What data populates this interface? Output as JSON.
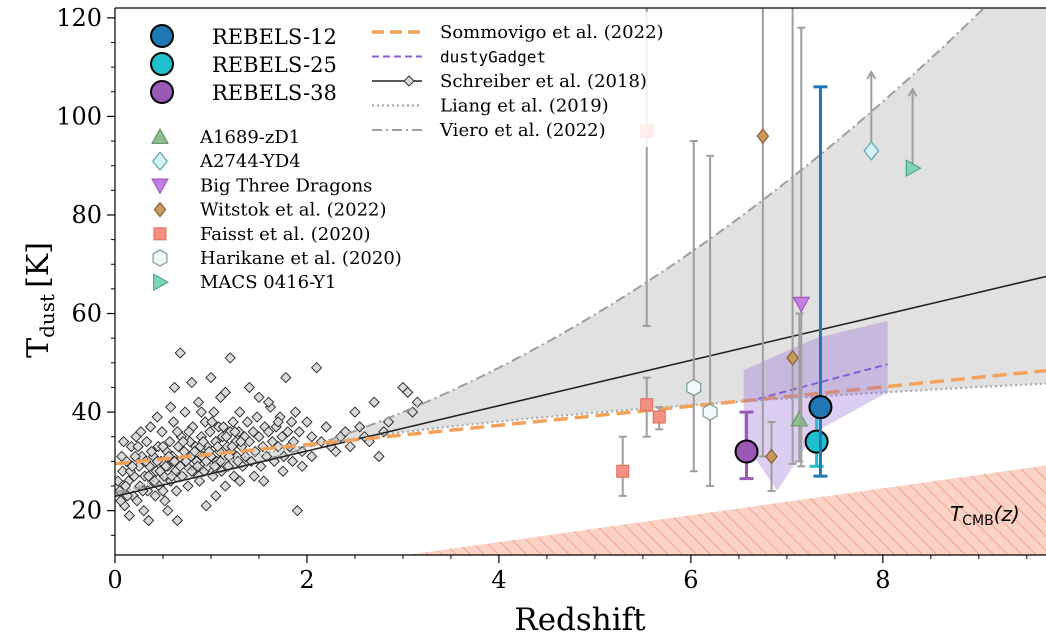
{
  "chart_data": {
    "type": "scatter",
    "xlabel": "Redshift",
    "ylabel": "T",
    "ylabel_sub": "dust",
    "ylabel_unit": "[K]",
    "xlim": [
      0,
      9.7
    ],
    "ylim": [
      11,
      122
    ],
    "xticks": [
      0,
      2,
      4,
      6,
      8
    ],
    "yticks": [
      20,
      40,
      60,
      80,
      100,
      120
    ],
    "grid": false,
    "legend_position": "top-left",
    "region_label": "T_CMB(z)",
    "region_label_main": "T",
    "region_label_sub": "CMB",
    "region_label_tail": "(z)",
    "colors": {
      "rebels12": "#1f78b4",
      "rebels25": "#1fbfd0",
      "rebels38": "#9b59b6",
      "sommovigo": "#f4a25a",
      "dustygadget": "#8b5cd6",
      "errorbar": "#9e9e9e",
      "shade": "#dcdcdc",
      "cmb": "#f8b3a3"
    },
    "legend": {
      "rebels": [
        "REBELS-12",
        "REBELS-25",
        "REBELS-38"
      ],
      "lit": [
        "A1689-zD1",
        "A2744-YD4",
        "Big Three Dragons",
        "Witstok et al. (2022)",
        "Faisst et al. (2020)",
        "Harikane et al. (2020)",
        "MACS 0416-Y1"
      ],
      "models": [
        "Sommovigo et al. (2022)",
        "dustyGadget",
        "Schreiber et al. (2018)",
        "Liang et al. (2019)",
        "Viero et al. (2022)"
      ]
    },
    "series": [
      {
        "name": "REBELS-12",
        "points": [
          {
            "x": 7.35,
            "y": 41,
            "lo": 27,
            "hi": 106
          }
        ]
      },
      {
        "name": "REBELS-25",
        "points": [
          {
            "x": 7.31,
            "y": 34,
            "lo": 29,
            "hi": 41
          }
        ]
      },
      {
        "name": "REBELS-38",
        "points": [
          {
            "x": 6.58,
            "y": 32,
            "lo": 26.5,
            "hi": 40
          }
        ]
      },
      {
        "name": "A1689-zD1",
        "points": [
          {
            "x": 7.13,
            "y": 38.5,
            "lo": 30,
            "hi": 60
          }
        ]
      },
      {
        "name": "A2744-YD4",
        "points": [
          {
            "x": 7.88,
            "y": 93,
            "lo": 93,
            "hi": 109,
            "limit": "lower"
          }
        ]
      },
      {
        "name": "Big Three Dragons",
        "points": [
          {
            "x": 7.15,
            "y": 62,
            "lo": 29,
            "hi": 118
          }
        ]
      },
      {
        "name": "Witstok et al. (2022)",
        "points": [
          {
            "x": 6.75,
            "y": 96,
            "lo": 31,
            "hi": 122
          },
          {
            "x": 7.06,
            "y": 51,
            "lo": 29.5,
            "hi": 122
          },
          {
            "x": 6.84,
            "y": 31,
            "lo": 24,
            "hi": 38
          }
        ]
      },
      {
        "name": "Faisst et al. (2020)",
        "points": [
          {
            "x": 5.54,
            "y": 97,
            "lo": 57.5,
            "hi": 122
          },
          {
            "x": 5.54,
            "y": 41.5,
            "lo": 35,
            "hi": 47
          },
          {
            "x": 5.67,
            "y": 39,
            "lo": 36.5,
            "hi": 41
          },
          {
            "x": 5.29,
            "y": 28,
            "lo": 23,
            "hi": 35
          }
        ]
      },
      {
        "name": "Harikane et al. (2020)",
        "points": [
          {
            "x": 6.03,
            "y": 45,
            "lo": 28,
            "hi": 95
          },
          {
            "x": 6.2,
            "y": 40,
            "lo": 25,
            "hi": 92
          }
        ]
      },
      {
        "name": "MACS 0416-Y1",
        "points": [
          {
            "x": 8.31,
            "y": 89.5,
            "lo": 89.5,
            "hi": 105.5,
            "limit": "lower"
          }
        ]
      }
    ],
    "schreiber_points_note": "cloud of ~450 low-redshift sources, 0<z<3.2",
    "schreiber_points": [
      [
        0.05,
        24
      ],
      [
        0.08,
        28
      ],
      [
        0.1,
        21
      ],
      [
        0.12,
        30
      ],
      [
        0.14,
        26
      ],
      [
        0.15,
        19
      ],
      [
        0.17,
        33
      ],
      [
        0.19,
        23
      ],
      [
        0.2,
        27
      ],
      [
        0.22,
        35
      ],
      [
        0.23,
        22
      ],
      [
        0.25,
        29
      ],
      [
        0.26,
        25
      ],
      [
        0.28,
        31
      ],
      [
        0.3,
        20
      ],
      [
        0.31,
        27
      ],
      [
        0.33,
        34
      ],
      [
        0.34,
        24
      ],
      [
        0.36,
        29
      ],
      [
        0.37,
        37
      ],
      [
        0.39,
        26
      ],
      [
        0.4,
        31
      ],
      [
        0.42,
        23
      ],
      [
        0.43,
        28
      ],
      [
        0.45,
        33
      ],
      [
        0.46,
        25
      ],
      [
        0.48,
        30
      ],
      [
        0.49,
        36
      ],
      [
        0.51,
        27
      ],
      [
        0.52,
        22
      ],
      [
        0.54,
        32
      ],
      [
        0.55,
        29
      ],
      [
        0.57,
        34
      ],
      [
        0.58,
        26
      ],
      [
        0.6,
        31
      ],
      [
        0.61,
        38
      ],
      [
        0.63,
        28
      ],
      [
        0.64,
        24
      ],
      [
        0.66,
        33
      ],
      [
        0.67,
        30
      ],
      [
        0.69,
        35
      ],
      [
        0.7,
        27
      ],
      [
        0.72,
        32
      ],
      [
        0.73,
        40
      ],
      [
        0.75,
        29
      ],
      [
        0.76,
        25
      ],
      [
        0.78,
        34
      ],
      [
        0.79,
        31
      ],
      [
        0.81,
        37
      ],
      [
        0.82,
        28
      ],
      [
        0.84,
        33
      ],
      [
        0.85,
        30
      ],
      [
        0.87,
        42
      ],
      [
        0.88,
        26
      ],
      [
        0.9,
        35
      ],
      [
        0.91,
        31
      ],
      [
        0.93,
        28
      ],
      [
        0.94,
        38
      ],
      [
        0.96,
        33
      ],
      [
        0.97,
        29
      ],
      [
        0.99,
        36
      ],
      [
        1.0,
        31
      ],
      [
        1.02,
        27
      ],
      [
        1.03,
        40
      ],
      [
        1.05,
        34
      ],
      [
        1.06,
        30
      ],
      [
        1.08,
        37
      ],
      [
        1.09,
        32
      ],
      [
        1.11,
        28
      ],
      [
        1.12,
        35
      ],
      [
        1.14,
        31
      ],
      [
        1.15,
        44
      ],
      [
        1.17,
        33
      ],
      [
        1.18,
        29
      ],
      [
        1.2,
        36
      ],
      [
        1.21,
        32
      ],
      [
        1.23,
        38
      ],
      [
        1.24,
        27
      ],
      [
        1.26,
        34
      ],
      [
        1.27,
        31
      ],
      [
        1.29,
        36
      ],
      [
        1.3,
        40
      ],
      [
        1.32,
        33
      ],
      [
        1.33,
        29
      ],
      [
        1.35,
        35
      ],
      [
        1.36,
        31
      ],
      [
        1.38,
        38
      ],
      [
        1.4,
        34
      ],
      [
        1.42,
        30
      ],
      [
        1.44,
        36
      ],
      [
        1.46,
        32
      ],
      [
        1.48,
        39
      ],
      [
        1.5,
        35
      ],
      [
        1.52,
        29
      ],
      [
        1.54,
        33
      ],
      [
        1.56,
        37
      ],
      [
        1.58,
        31
      ],
      [
        1.6,
        36
      ],
      [
        1.62,
        41
      ],
      [
        1.64,
        34
      ],
      [
        1.66,
        30
      ],
      [
        1.68,
        37
      ],
      [
        1.7,
        33
      ],
      [
        1.72,
        39
      ],
      [
        1.74,
        35
      ],
      [
        1.76,
        31
      ],
      [
        1.78,
        47
      ],
      [
        1.8,
        36
      ],
      [
        1.82,
        33
      ],
      [
        1.84,
        38
      ],
      [
        1.86,
        34
      ],
      [
        1.88,
        40
      ],
      [
        1.9,
        20
      ],
      [
        1.92,
        36
      ],
      [
        1.95,
        32
      ],
      [
        2.0,
        38
      ],
      [
        2.05,
        35
      ],
      [
        2.1,
        49
      ],
      [
        2.15,
        34
      ],
      [
        2.2,
        37
      ],
      [
        2.3,
        32
      ],
      [
        2.4,
        36
      ],
      [
        2.5,
        40
      ],
      [
        2.6,
        35
      ],
      [
        2.7,
        42
      ],
      [
        2.75,
        31
      ],
      [
        2.85,
        38
      ],
      [
        3.0,
        45
      ],
      [
        3.05,
        44
      ],
      [
        3.15,
        42
      ],
      [
        0.07,
        31
      ],
      [
        0.11,
        25
      ],
      [
        0.16,
        28
      ],
      [
        0.21,
        31
      ],
      [
        0.24,
        33
      ],
      [
        0.29,
        24
      ],
      [
        0.32,
        30
      ],
      [
        0.35,
        27
      ],
      [
        0.38,
        32
      ],
      [
        0.41,
        26
      ],
      [
        0.44,
        30
      ],
      [
        0.47,
        28
      ],
      [
        0.5,
        33
      ],
      [
        0.53,
        29
      ],
      [
        0.56,
        31
      ],
      [
        0.59,
        27
      ],
      [
        0.62,
        30
      ],
      [
        0.65,
        36
      ],
      [
        0.68,
        29
      ],
      [
        0.71,
        34
      ],
      [
        0.74,
        30
      ],
      [
        0.77,
        36
      ],
      [
        0.8,
        28
      ],
      [
        0.83,
        32
      ],
      [
        0.86,
        29
      ],
      [
        0.89,
        33
      ],
      [
        0.92,
        34
      ],
      [
        0.95,
        30
      ],
      [
        0.98,
        32
      ],
      [
        1.01,
        38
      ],
      [
        1.04,
        29
      ],
      [
        1.07,
        33
      ],
      [
        1.1,
        30
      ],
      [
        1.13,
        37
      ],
      [
        1.16,
        35
      ],
      [
        1.19,
        31
      ],
      [
        1.22,
        33
      ],
      [
        1.25,
        36
      ],
      [
        1.28,
        30
      ],
      [
        1.31,
        34
      ],
      [
        0.03,
        26
      ],
      [
        0.06,
        22
      ],
      [
        0.09,
        34
      ],
      [
        0.13,
        23
      ],
      [
        0.18,
        29
      ],
      [
        0.27,
        36
      ],
      [
        0.44,
        39
      ],
      [
        0.5,
        24
      ],
      [
        0.58,
        41
      ],
      [
        0.62,
        45
      ],
      [
        0.68,
        52
      ],
      [
        0.8,
        46
      ],
      [
        0.9,
        40
      ],
      [
        1.0,
        47
      ],
      [
        1.1,
        43
      ],
      [
        1.2,
        51
      ],
      [
        1.4,
        45
      ],
      [
        1.5,
        43
      ],
      [
        1.6,
        42
      ],
      [
        1.7,
        38
      ],
      [
        0.35,
        18
      ],
      [
        0.55,
        20
      ],
      [
        0.65,
        18
      ],
      [
        0.95,
        21
      ],
      [
        1.05,
        23
      ],
      [
        1.15,
        25
      ],
      [
        1.3,
        26
      ],
      [
        1.45,
        27
      ],
      [
        1.55,
        26
      ],
      [
        1.75,
        28
      ],
      [
        1.85,
        30
      ],
      [
        1.95,
        29
      ],
      [
        2.05,
        31
      ],
      [
        2.25,
        33
      ],
      [
        2.35,
        35
      ],
      [
        2.45,
        33
      ],
      [
        2.55,
        37
      ],
      [
        2.65,
        34
      ],
      [
        2.8,
        36
      ],
      [
        3.1,
        40
      ]
    ]
  }
}
